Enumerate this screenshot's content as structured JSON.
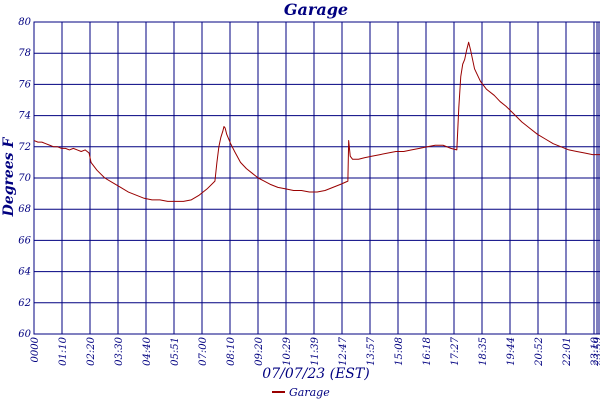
{
  "chart_data": {
    "type": "line",
    "title": "Garage",
    "xlabel": "07/07/23 (EST)",
    "ylabel": "Degrees F",
    "ylim": [
      60,
      80
    ],
    "yticks": [
      60,
      62,
      64,
      66,
      68,
      70,
      72,
      74,
      76,
      78,
      80
    ],
    "xlim": [
      "00:00",
      "23:59"
    ],
    "xtick_labels": [
      "0000",
      "01:10",
      "02:20",
      "03:30",
      "04:40",
      "05:51",
      "07:00",
      "08:10",
      "09:20",
      "10:29",
      "11:39",
      "12:47",
      "13:57",
      "15:08",
      "16:18",
      "17:27",
      "18:35",
      "19:44",
      "20:52",
      "22:01",
      "23:10",
      "23:59"
    ],
    "grid": true,
    "legend_position": "bottom-center",
    "colors": {
      "title": "#000080",
      "axis_text": "#000080",
      "grid": "#000080",
      "series": "#990000",
      "background": "#ffffff"
    },
    "series": [
      {
        "name": "Garage",
        "points": [
          [
            "00:00",
            72.4
          ],
          [
            "00:10",
            72.3
          ],
          [
            "00:20",
            72.3
          ],
          [
            "00:30",
            72.2
          ],
          [
            "00:40",
            72.1
          ],
          [
            "00:50",
            72.0
          ],
          [
            "01:00",
            72.0
          ],
          [
            "01:10",
            71.9
          ],
          [
            "01:20",
            71.9
          ],
          [
            "01:30",
            71.8
          ],
          [
            "01:40",
            71.9
          ],
          [
            "01:50",
            71.8
          ],
          [
            "02:00",
            71.7
          ],
          [
            "02:10",
            71.8
          ],
          [
            "02:20",
            71.6
          ],
          [
            "02:25",
            71.0
          ],
          [
            "02:40",
            70.5
          ],
          [
            "03:00",
            70.0
          ],
          [
            "03:20",
            69.7
          ],
          [
            "03:40",
            69.4
          ],
          [
            "04:00",
            69.1
          ],
          [
            "04:20",
            68.9
          ],
          [
            "04:40",
            68.7
          ],
          [
            "05:00",
            68.6
          ],
          [
            "05:20",
            68.6
          ],
          [
            "05:40",
            68.5
          ],
          [
            "06:00",
            68.5
          ],
          [
            "06:20",
            68.5
          ],
          [
            "06:40",
            68.6
          ],
          [
            "07:00",
            68.9
          ],
          [
            "07:20",
            69.3
          ],
          [
            "07:40",
            69.8
          ],
          [
            "07:45",
            71.0
          ],
          [
            "07:50",
            72.0
          ],
          [
            "07:55",
            72.6
          ],
          [
            "08:00",
            73.0
          ],
          [
            "08:03",
            73.3
          ],
          [
            "08:06",
            73.2
          ],
          [
            "08:10",
            72.8
          ],
          [
            "08:20",
            72.2
          ],
          [
            "08:30",
            71.7
          ],
          [
            "08:45",
            71.0
          ],
          [
            "09:00",
            70.6
          ],
          [
            "09:15",
            70.3
          ],
          [
            "09:30",
            70.0
          ],
          [
            "09:45",
            69.8
          ],
          [
            "10:00",
            69.6
          ],
          [
            "10:20",
            69.4
          ],
          [
            "10:40",
            69.3
          ],
          [
            "11:00",
            69.2
          ],
          [
            "11:20",
            69.2
          ],
          [
            "11:40",
            69.1
          ],
          [
            "12:00",
            69.1
          ],
          [
            "12:20",
            69.2
          ],
          [
            "12:40",
            69.4
          ],
          [
            "13:00",
            69.6
          ],
          [
            "13:18",
            69.8
          ],
          [
            "13:20",
            72.4
          ],
          [
            "13:24",
            71.4
          ],
          [
            "13:30",
            71.2
          ],
          [
            "13:45",
            71.2
          ],
          [
            "14:00",
            71.3
          ],
          [
            "14:20",
            71.4
          ],
          [
            "14:40",
            71.5
          ],
          [
            "15:00",
            71.6
          ],
          [
            "15:20",
            71.7
          ],
          [
            "15:40",
            71.7
          ],
          [
            "16:00",
            71.8
          ],
          [
            "16:20",
            71.9
          ],
          [
            "16:40",
            72.0
          ],
          [
            "17:00",
            72.1
          ],
          [
            "17:20",
            72.1
          ],
          [
            "17:40",
            71.9
          ],
          [
            "17:55",
            71.8
          ],
          [
            "18:00",
            74.5
          ],
          [
            "18:05",
            76.5
          ],
          [
            "18:10",
            77.3
          ],
          [
            "18:15",
            77.6
          ],
          [
            "18:20",
            78.2
          ],
          [
            "18:25",
            78.7
          ],
          [
            "18:30",
            78.2
          ],
          [
            "18:40",
            77.0
          ],
          [
            "18:55",
            76.2
          ],
          [
            "19:10",
            75.7
          ],
          [
            "19:30",
            75.3
          ],
          [
            "19:45",
            74.9
          ],
          [
            "20:00",
            74.6
          ],
          [
            "20:20",
            74.1
          ],
          [
            "20:40",
            73.6
          ],
          [
            "21:00",
            73.2
          ],
          [
            "21:20",
            72.8
          ],
          [
            "21:40",
            72.5
          ],
          [
            "22:00",
            72.2
          ],
          [
            "22:20",
            72.0
          ],
          [
            "22:40",
            71.8
          ],
          [
            "23:00",
            71.7
          ],
          [
            "23:20",
            71.6
          ],
          [
            "23:40",
            71.5
          ],
          [
            "23:59",
            71.5
          ]
        ]
      }
    ]
  }
}
